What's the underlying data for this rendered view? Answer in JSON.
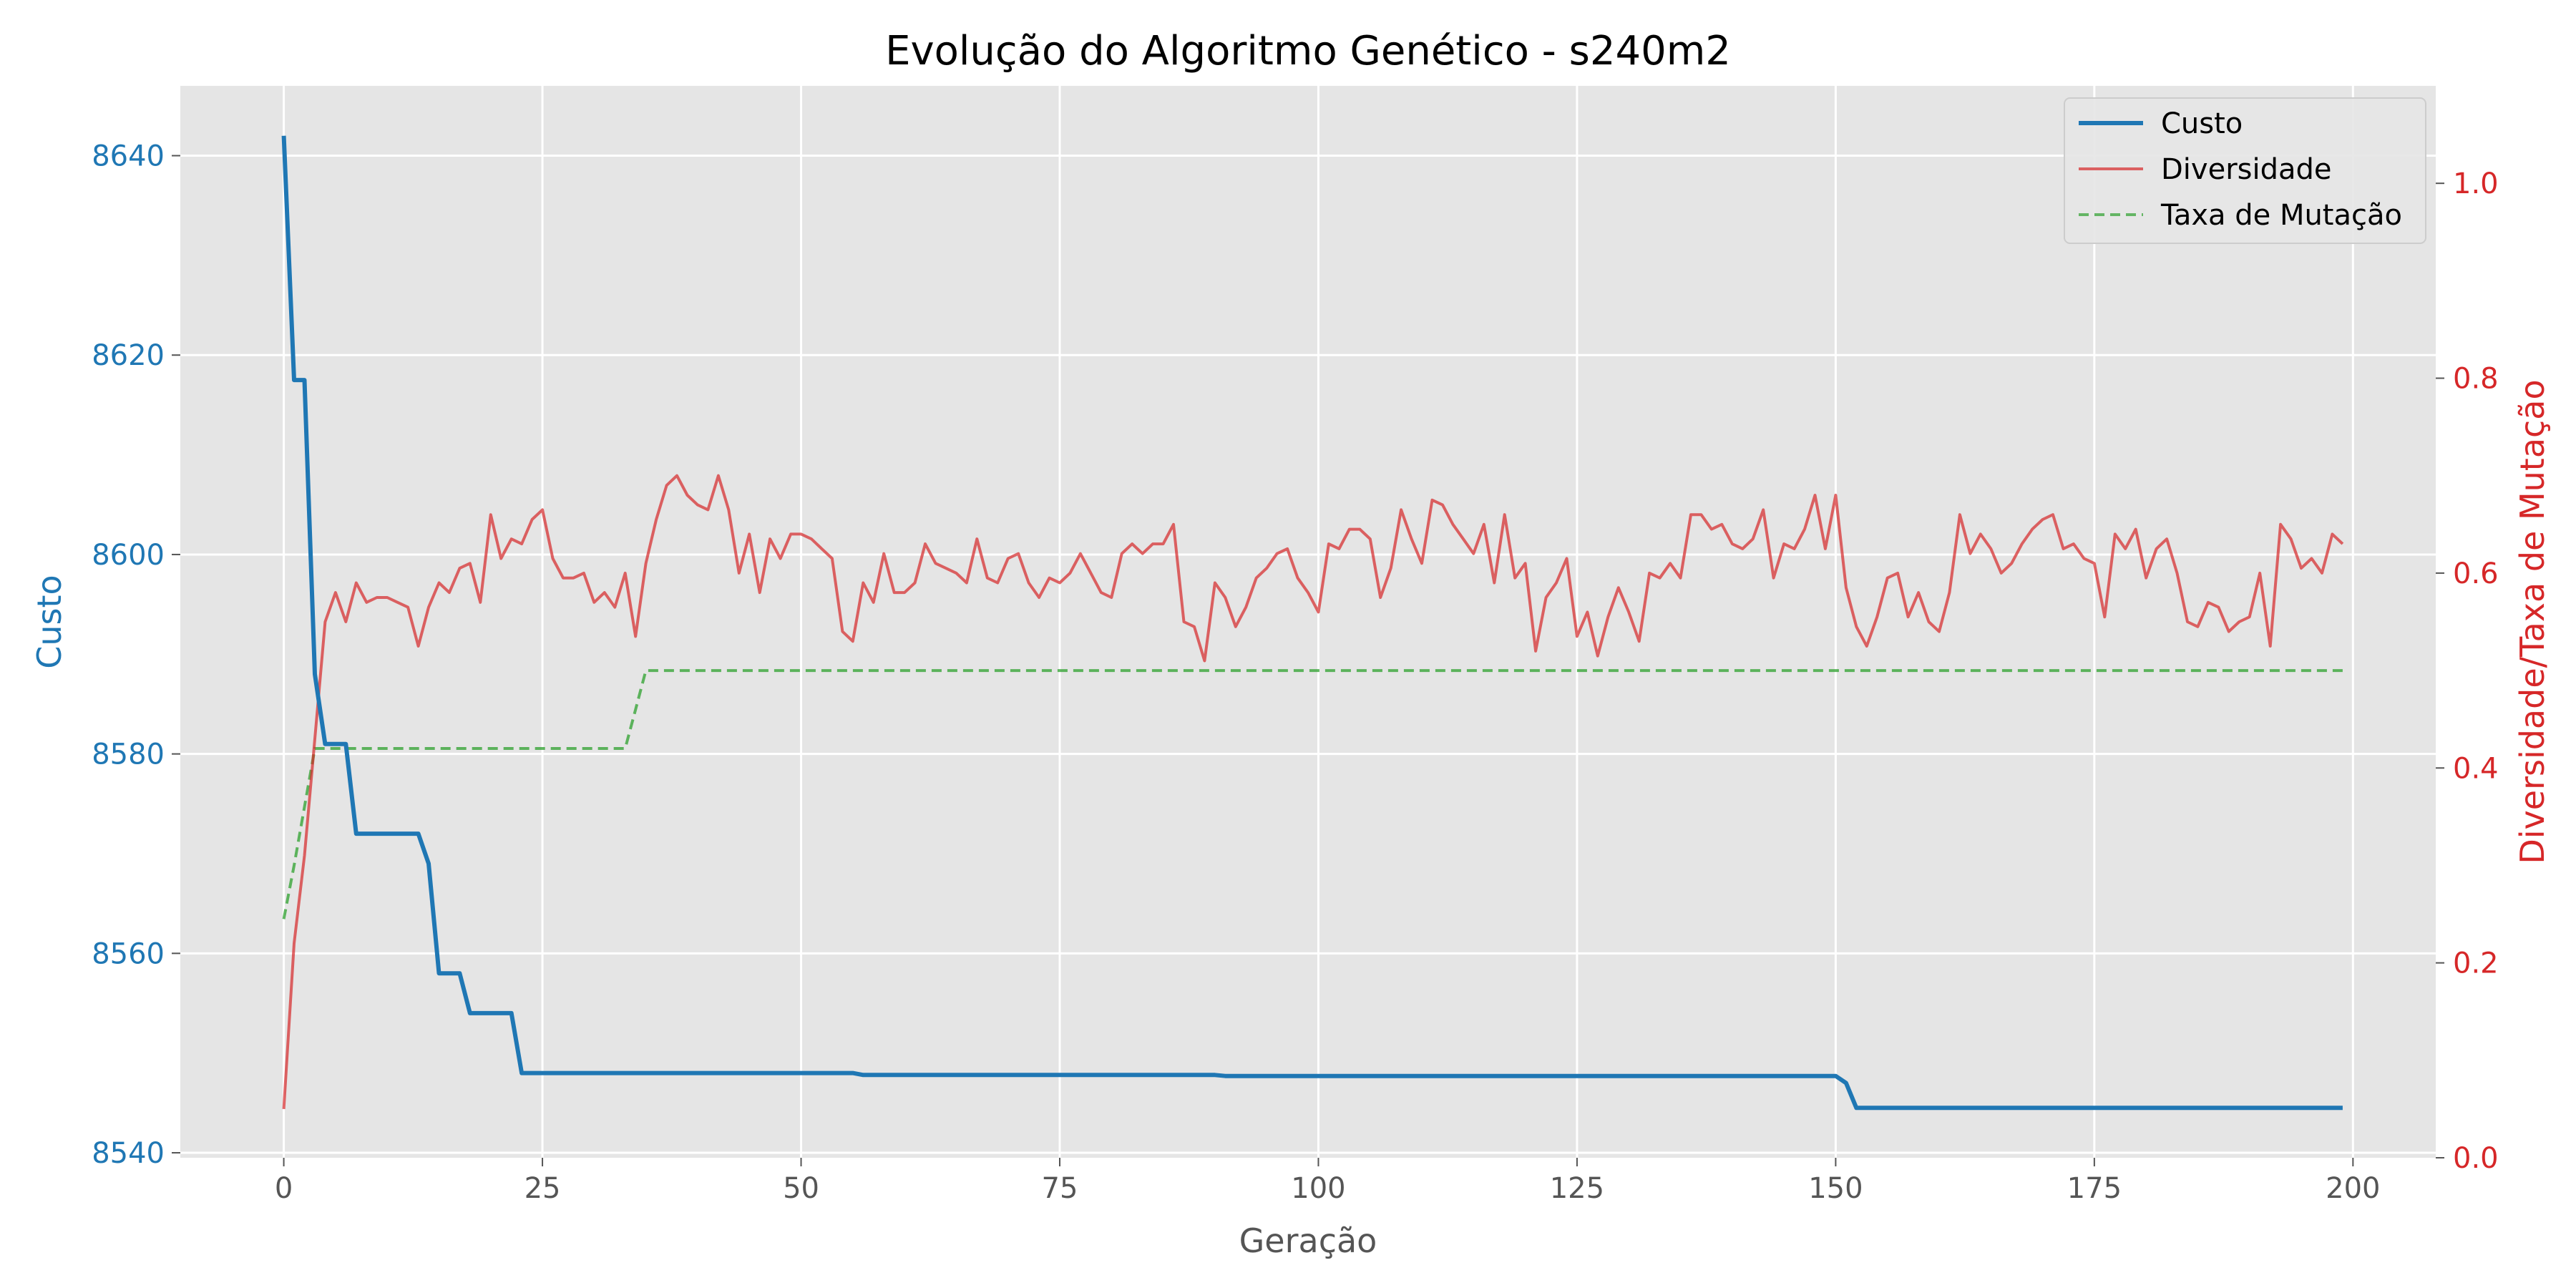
{
  "chart_data": {
    "type": "line",
    "title": "Evolução do Algoritmo Genético - s240m2",
    "xlabel": "Geração",
    "ylabel_left": "Custo",
    "ylabel_right": "Diversidade/Taxa de Mutação",
    "xlim": [
      -10,
      208
    ],
    "ylim_left": [
      8539.5,
      8647
    ],
    "ylim_right": [
      0.0,
      1.1
    ],
    "x_ticks": [
      0,
      25,
      50,
      75,
      100,
      125,
      150,
      175,
      200
    ],
    "y_left_ticks": [
      8540,
      8560,
      8580,
      8600,
      8620,
      8640
    ],
    "y_right_ticks": [
      "0.0",
      "0.2",
      "0.4",
      "0.6",
      "0.8",
      "1.0"
    ],
    "grid": true,
    "legend_position": "top-right",
    "colors": {
      "custo": "#1f77b4",
      "diversidade": "#d62728",
      "taxa": "#2ca02c",
      "left_axis_text": "#1f77b4",
      "right_axis_text": "#d62728",
      "plot_bg": "#e5e5e5",
      "grid": "#ffffff"
    },
    "series": [
      {
        "name": "Custo",
        "axis": "left",
        "style": "solid",
        "points": [
          [
            0,
            8642
          ],
          [
            1,
            8617.5
          ],
          [
            2,
            8617.5
          ],
          [
            3,
            8588
          ],
          [
            4,
            8581
          ],
          [
            5,
            8581
          ],
          [
            6,
            8581
          ],
          [
            7,
            8572
          ],
          [
            8,
            8572
          ],
          [
            13,
            8572
          ],
          [
            14,
            8569
          ],
          [
            15,
            8558
          ],
          [
            16,
            8558
          ],
          [
            17,
            8558
          ],
          [
            18,
            8554
          ],
          [
            22,
            8554
          ],
          [
            23,
            8548
          ],
          [
            55,
            8548
          ],
          [
            56,
            8547.8
          ],
          [
            90,
            8547.8
          ],
          [
            91,
            8547.7
          ],
          [
            150,
            8547.7
          ],
          [
            151,
            8547
          ],
          [
            152,
            8544.5
          ],
          [
            199,
            8544.5
          ]
        ]
      },
      {
        "name": "Diversidade",
        "axis": "right",
        "style": "solid",
        "points": [
          [
            0,
            0.05
          ],
          [
            1,
            0.22
          ],
          [
            2,
            0.31
          ],
          [
            3,
            0.43
          ],
          [
            4,
            0.55
          ],
          [
            5,
            0.58
          ],
          [
            6,
            0.55
          ],
          [
            7,
            0.59
          ],
          [
            8,
            0.57
          ],
          [
            9,
            0.575
          ],
          [
            10,
            0.575
          ],
          [
            11,
            0.57
          ],
          [
            12,
            0.565
          ],
          [
            13,
            0.525
          ],
          [
            14,
            0.565
          ],
          [
            15,
            0.59
          ],
          [
            16,
            0.58
          ],
          [
            17,
            0.605
          ],
          [
            18,
            0.61
          ],
          [
            19,
            0.57
          ],
          [
            20,
            0.66
          ],
          [
            21,
            0.615
          ],
          [
            22,
            0.635
          ],
          [
            23,
            0.63
          ],
          [
            24,
            0.655
          ],
          [
            25,
            0.665
          ],
          [
            26,
            0.615
          ],
          [
            27,
            0.595
          ],
          [
            28,
            0.595
          ],
          [
            29,
            0.6
          ],
          [
            30,
            0.57
          ],
          [
            31,
            0.58
          ],
          [
            32,
            0.565
          ],
          [
            33,
            0.6
          ],
          [
            34,
            0.535
          ],
          [
            35,
            0.61
          ],
          [
            36,
            0.655
          ],
          [
            37,
            0.69
          ],
          [
            38,
            0.7
          ],
          [
            39,
            0.68
          ],
          [
            40,
            0.67
          ],
          [
            41,
            0.665
          ],
          [
            42,
            0.7
          ],
          [
            43,
            0.665
          ],
          [
            44,
            0.6
          ],
          [
            45,
            0.64
          ],
          [
            46,
            0.58
          ],
          [
            47,
            0.635
          ],
          [
            48,
            0.615
          ],
          [
            49,
            0.64
          ],
          [
            50,
            0.64
          ],
          [
            51,
            0.635
          ],
          [
            52,
            0.625
          ],
          [
            53,
            0.615
          ],
          [
            54,
            0.54
          ],
          [
            55,
            0.53
          ],
          [
            56,
            0.59
          ],
          [
            57,
            0.57
          ],
          [
            58,
            0.62
          ],
          [
            59,
            0.58
          ],
          [
            60,
            0.58
          ],
          [
            61,
            0.59
          ],
          [
            62,
            0.63
          ],
          [
            63,
            0.61
          ],
          [
            64,
            0.605
          ],
          [
            65,
            0.6
          ],
          [
            66,
            0.59
          ],
          [
            67,
            0.635
          ],
          [
            68,
            0.595
          ],
          [
            69,
            0.59
          ],
          [
            70,
            0.615
          ],
          [
            71,
            0.62
          ],
          [
            72,
            0.59
          ],
          [
            73,
            0.575
          ],
          [
            74,
            0.595
          ],
          [
            75,
            0.59
          ],
          [
            76,
            0.6
          ],
          [
            77,
            0.62
          ],
          [
            78,
            0.6
          ],
          [
            79,
            0.58
          ],
          [
            80,
            0.575
          ],
          [
            81,
            0.62
          ],
          [
            82,
            0.63
          ],
          [
            83,
            0.62
          ],
          [
            84,
            0.63
          ],
          [
            85,
            0.63
          ],
          [
            86,
            0.65
          ],
          [
            87,
            0.55
          ],
          [
            88,
            0.545
          ],
          [
            89,
            0.51
          ],
          [
            90,
            0.59
          ],
          [
            91,
            0.575
          ],
          [
            92,
            0.545
          ],
          [
            93,
            0.565
          ],
          [
            94,
            0.595
          ],
          [
            95,
            0.605
          ],
          [
            96,
            0.62
          ],
          [
            97,
            0.625
          ],
          [
            98,
            0.595
          ],
          [
            99,
            0.58
          ],
          [
            100,
            0.56
          ],
          [
            101,
            0.63
          ],
          [
            102,
            0.625
          ],
          [
            103,
            0.645
          ],
          [
            104,
            0.645
          ],
          [
            105,
            0.635
          ],
          [
            106,
            0.575
          ],
          [
            107,
            0.605
          ],
          [
            108,
            0.665
          ],
          [
            109,
            0.635
          ],
          [
            110,
            0.61
          ],
          [
            111,
            0.675
          ],
          [
            112,
            0.67
          ],
          [
            113,
            0.65
          ],
          [
            114,
            0.635
          ],
          [
            115,
            0.62
          ],
          [
            116,
            0.65
          ],
          [
            117,
            0.59
          ],
          [
            118,
            0.66
          ],
          [
            119,
            0.595
          ],
          [
            120,
            0.61
          ],
          [
            121,
            0.52
          ],
          [
            122,
            0.575
          ],
          [
            123,
            0.59
          ],
          [
            124,
            0.615
          ],
          [
            125,
            0.535
          ],
          [
            126,
            0.56
          ],
          [
            127,
            0.515
          ],
          [
            128,
            0.555
          ],
          [
            129,
            0.585
          ],
          [
            130,
            0.56
          ],
          [
            131,
            0.53
          ],
          [
            132,
            0.6
          ],
          [
            133,
            0.595
          ],
          [
            134,
            0.61
          ],
          [
            135,
            0.595
          ],
          [
            136,
            0.66
          ],
          [
            137,
            0.66
          ],
          [
            138,
            0.645
          ],
          [
            139,
            0.65
          ],
          [
            140,
            0.63
          ],
          [
            141,
            0.625
          ],
          [
            142,
            0.635
          ],
          [
            143,
            0.665
          ],
          [
            144,
            0.595
          ],
          [
            145,
            0.63
          ],
          [
            146,
            0.625
          ],
          [
            147,
            0.645
          ],
          [
            148,
            0.68
          ],
          [
            149,
            0.625
          ],
          [
            150,
            0.68
          ],
          [
            151,
            0.585
          ],
          [
            152,
            0.545
          ],
          [
            153,
            0.525
          ],
          [
            154,
            0.555
          ],
          [
            155,
            0.595
          ],
          [
            156,
            0.6
          ],
          [
            157,
            0.555
          ],
          [
            158,
            0.58
          ],
          [
            159,
            0.55
          ],
          [
            160,
            0.54
          ],
          [
            161,
            0.58
          ],
          [
            162,
            0.66
          ],
          [
            163,
            0.62
          ],
          [
            164,
            0.64
          ],
          [
            165,
            0.625
          ],
          [
            166,
            0.6
          ],
          [
            167,
            0.61
          ],
          [
            168,
            0.63
          ],
          [
            169,
            0.645
          ],
          [
            170,
            0.655
          ],
          [
            171,
            0.66
          ],
          [
            172,
            0.625
          ],
          [
            173,
            0.63
          ],
          [
            174,
            0.615
          ],
          [
            175,
            0.61
          ],
          [
            176,
            0.555
          ],
          [
            177,
            0.64
          ],
          [
            178,
            0.625
          ],
          [
            179,
            0.645
          ],
          [
            180,
            0.595
          ],
          [
            181,
            0.625
          ],
          [
            182,
            0.635
          ],
          [
            183,
            0.6
          ],
          [
            184,
            0.55
          ],
          [
            185,
            0.545
          ],
          [
            186,
            0.57
          ],
          [
            187,
            0.565
          ],
          [
            188,
            0.54
          ],
          [
            189,
            0.55
          ],
          [
            190,
            0.555
          ],
          [
            191,
            0.6
          ],
          [
            192,
            0.525
          ],
          [
            193,
            0.65
          ],
          [
            194,
            0.635
          ],
          [
            195,
            0.605
          ],
          [
            196,
            0.615
          ],
          [
            197,
            0.6
          ],
          [
            198,
            0.64
          ],
          [
            199,
            0.63
          ]
        ]
      },
      {
        "name": "Taxa de Mutação",
        "axis": "right",
        "style": "dashed",
        "points": [
          [
            0,
            0.245
          ],
          [
            1,
            0.3
          ],
          [
            2,
            0.36
          ],
          [
            3,
            0.42
          ],
          [
            33,
            0.42
          ],
          [
            34,
            0.46
          ],
          [
            35,
            0.5
          ],
          [
            199,
            0.5
          ]
        ]
      }
    ]
  }
}
